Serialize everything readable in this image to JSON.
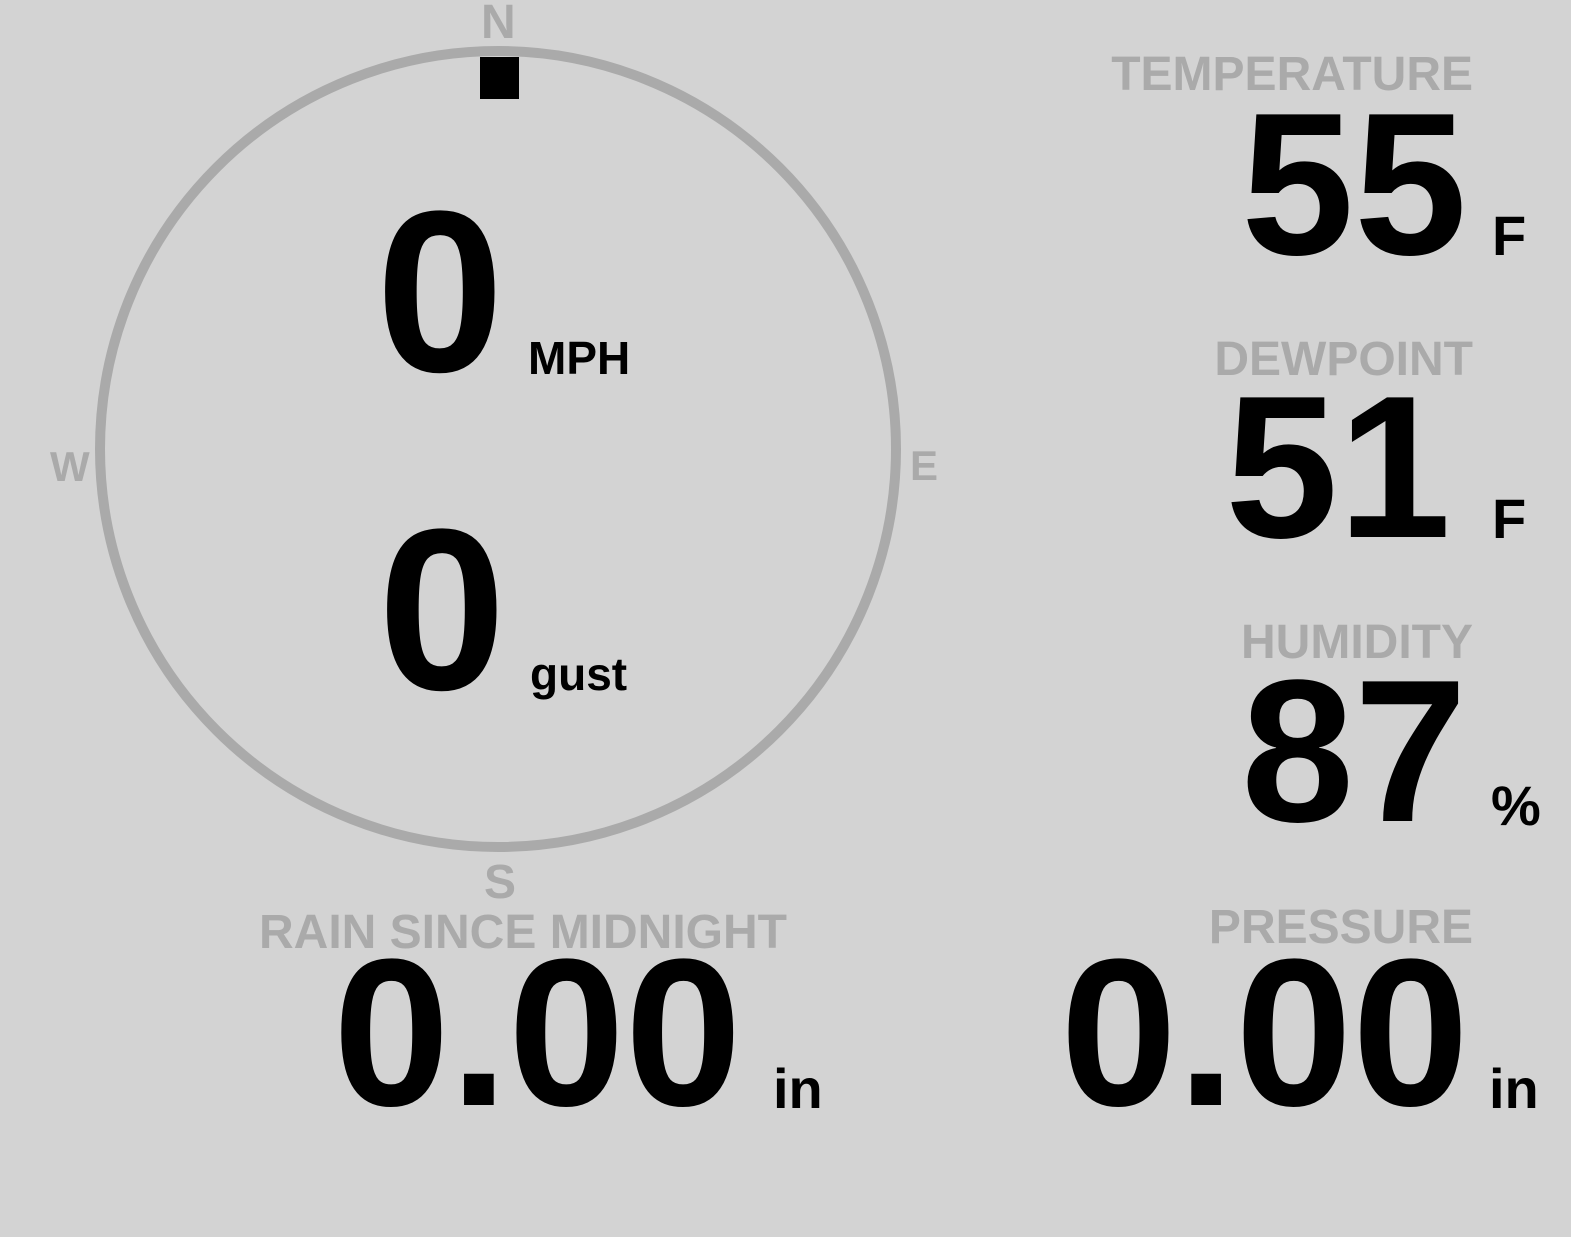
{
  "colors": {
    "background": "#d3d3d3",
    "label": "#aaaaaa",
    "value": "#000000",
    "compass_ring": "#aaaaaa"
  },
  "wind": {
    "speed": "0",
    "speed_unit": "MPH",
    "gust": "0",
    "gust_unit": "gust",
    "direction_deg": 0,
    "compass": {
      "n": "N",
      "e": "E",
      "s": "S",
      "w": "W"
    }
  },
  "temperature": {
    "label": "TEMPERATURE",
    "value": "55",
    "unit": "F"
  },
  "dewpoint": {
    "label": "DEWPOINT",
    "value": "51",
    "unit": "F"
  },
  "humidity": {
    "label": "HUMIDITY",
    "value": "87",
    "unit": "%"
  },
  "rain": {
    "label": "RAIN SINCE MIDNIGHT",
    "value": "0.00",
    "unit": "in"
  },
  "pressure": {
    "label": "PRESSURE",
    "value": "0.00",
    "unit": "in"
  }
}
